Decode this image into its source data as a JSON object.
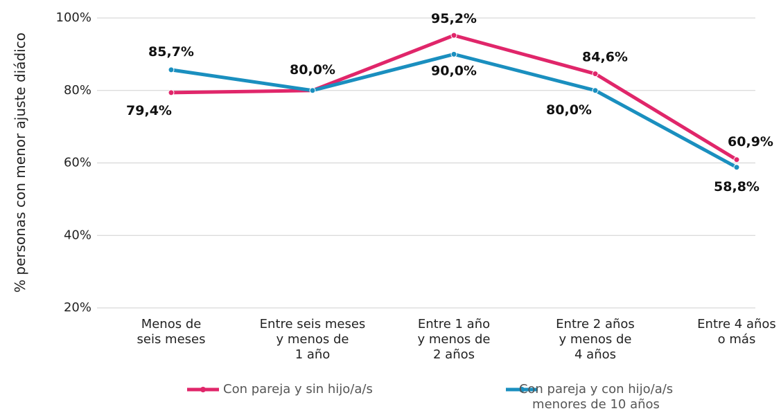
{
  "chart_data": {
    "type": "line",
    "y_label": "% personas con menor ajuste diádico",
    "categories": [
      "Menos de\nseis meses",
      "Entre seis meses\ny menos de\n1 año",
      "Entre 1 año\ny menos de\n2 años",
      "Entre 2 años\ny menos de\n4 años",
      "Entre 4 años\no más"
    ],
    "series": [
      {
        "name": "Con pareja y sin hijo/a/s",
        "color": "#e0266a",
        "values": [
          79.4,
          80.0,
          95.2,
          84.6,
          60.9
        ],
        "value_labels": [
          "79,4%",
          "80,0%",
          "95,2%",
          "84,6%",
          "60,9%"
        ]
      },
      {
        "name": "Con pareja y con hijo/a/s\nmenores de 10 años",
        "color": "#1a8fbf",
        "values": [
          85.7,
          80.0,
          90.0,
          80.0,
          58.8
        ],
        "value_labels": [
          "85,7%",
          null,
          "90,0%",
          "80,0%",
          "58,8%"
        ]
      }
    ],
    "ylim": [
      20,
      100
    ],
    "yticks": [
      {
        "value": 20,
        "label": "20%"
      },
      {
        "value": 40,
        "label": "40%"
      },
      {
        "value": 60,
        "label": "60%"
      },
      {
        "value": 80,
        "label": "80%"
      },
      {
        "value": 100,
        "label": "100%"
      }
    ],
    "grid": true
  }
}
